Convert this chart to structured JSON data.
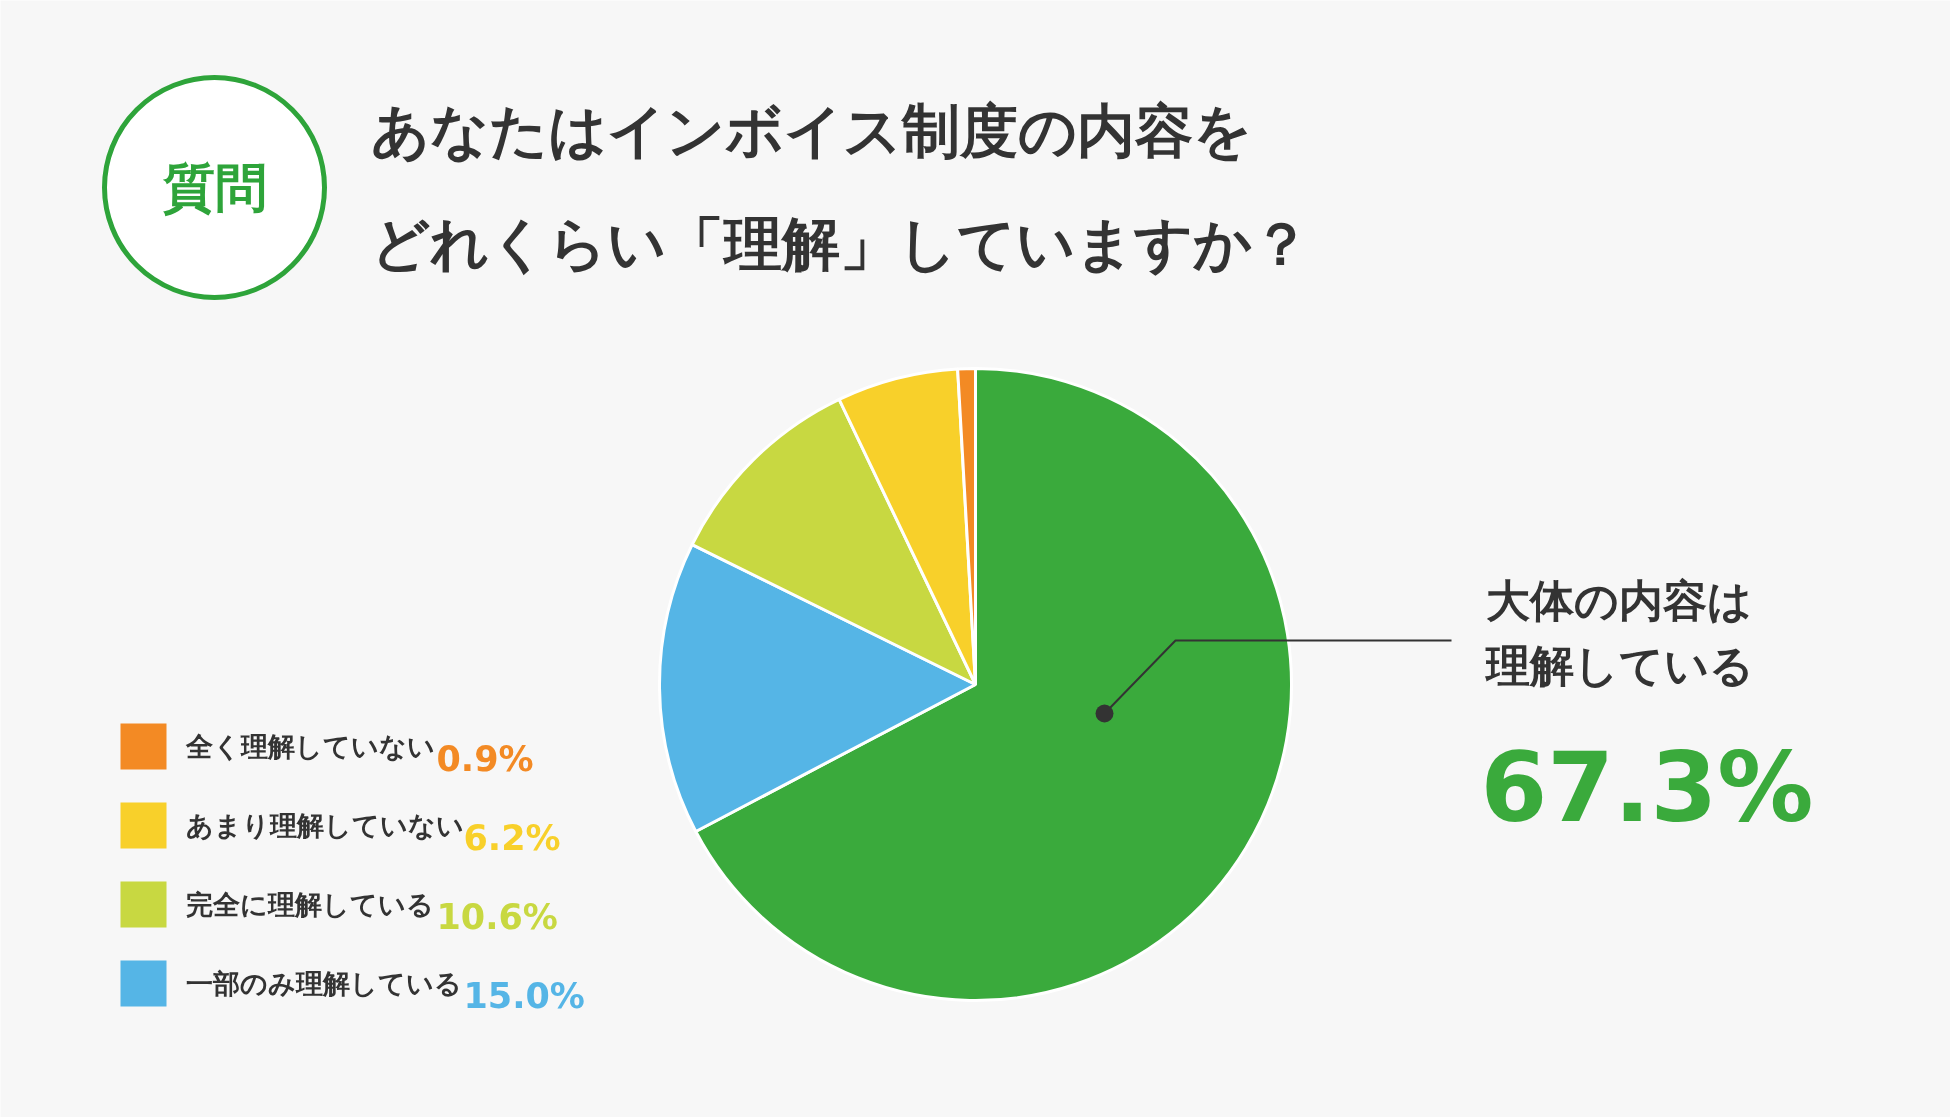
{
  "chart_data": {
    "type": "pie",
    "title": "あなたはインボイス制度の内容をどれくらい「理解」していますか？",
    "annotations": [
      "質問"
    ],
    "categories": [
      "大体の内容は理解している",
      "一部のみ理解している",
      "完全に理解している",
      "あまり理解していない",
      "全く理解していない"
    ],
    "values": [
      67.3,
      15.0,
      10.6,
      6.2,
      0.9
    ],
    "colors": [
      "#3aaa3c",
      "#55b5e6",
      "#c8d841",
      "#f8d02a",
      "#f38a24"
    ],
    "value_labels": [
      "67.3%",
      "15.0%",
      "10.6%",
      "6.2%",
      "0.9%"
    ],
    "legend": "bottom left"
  }
}
